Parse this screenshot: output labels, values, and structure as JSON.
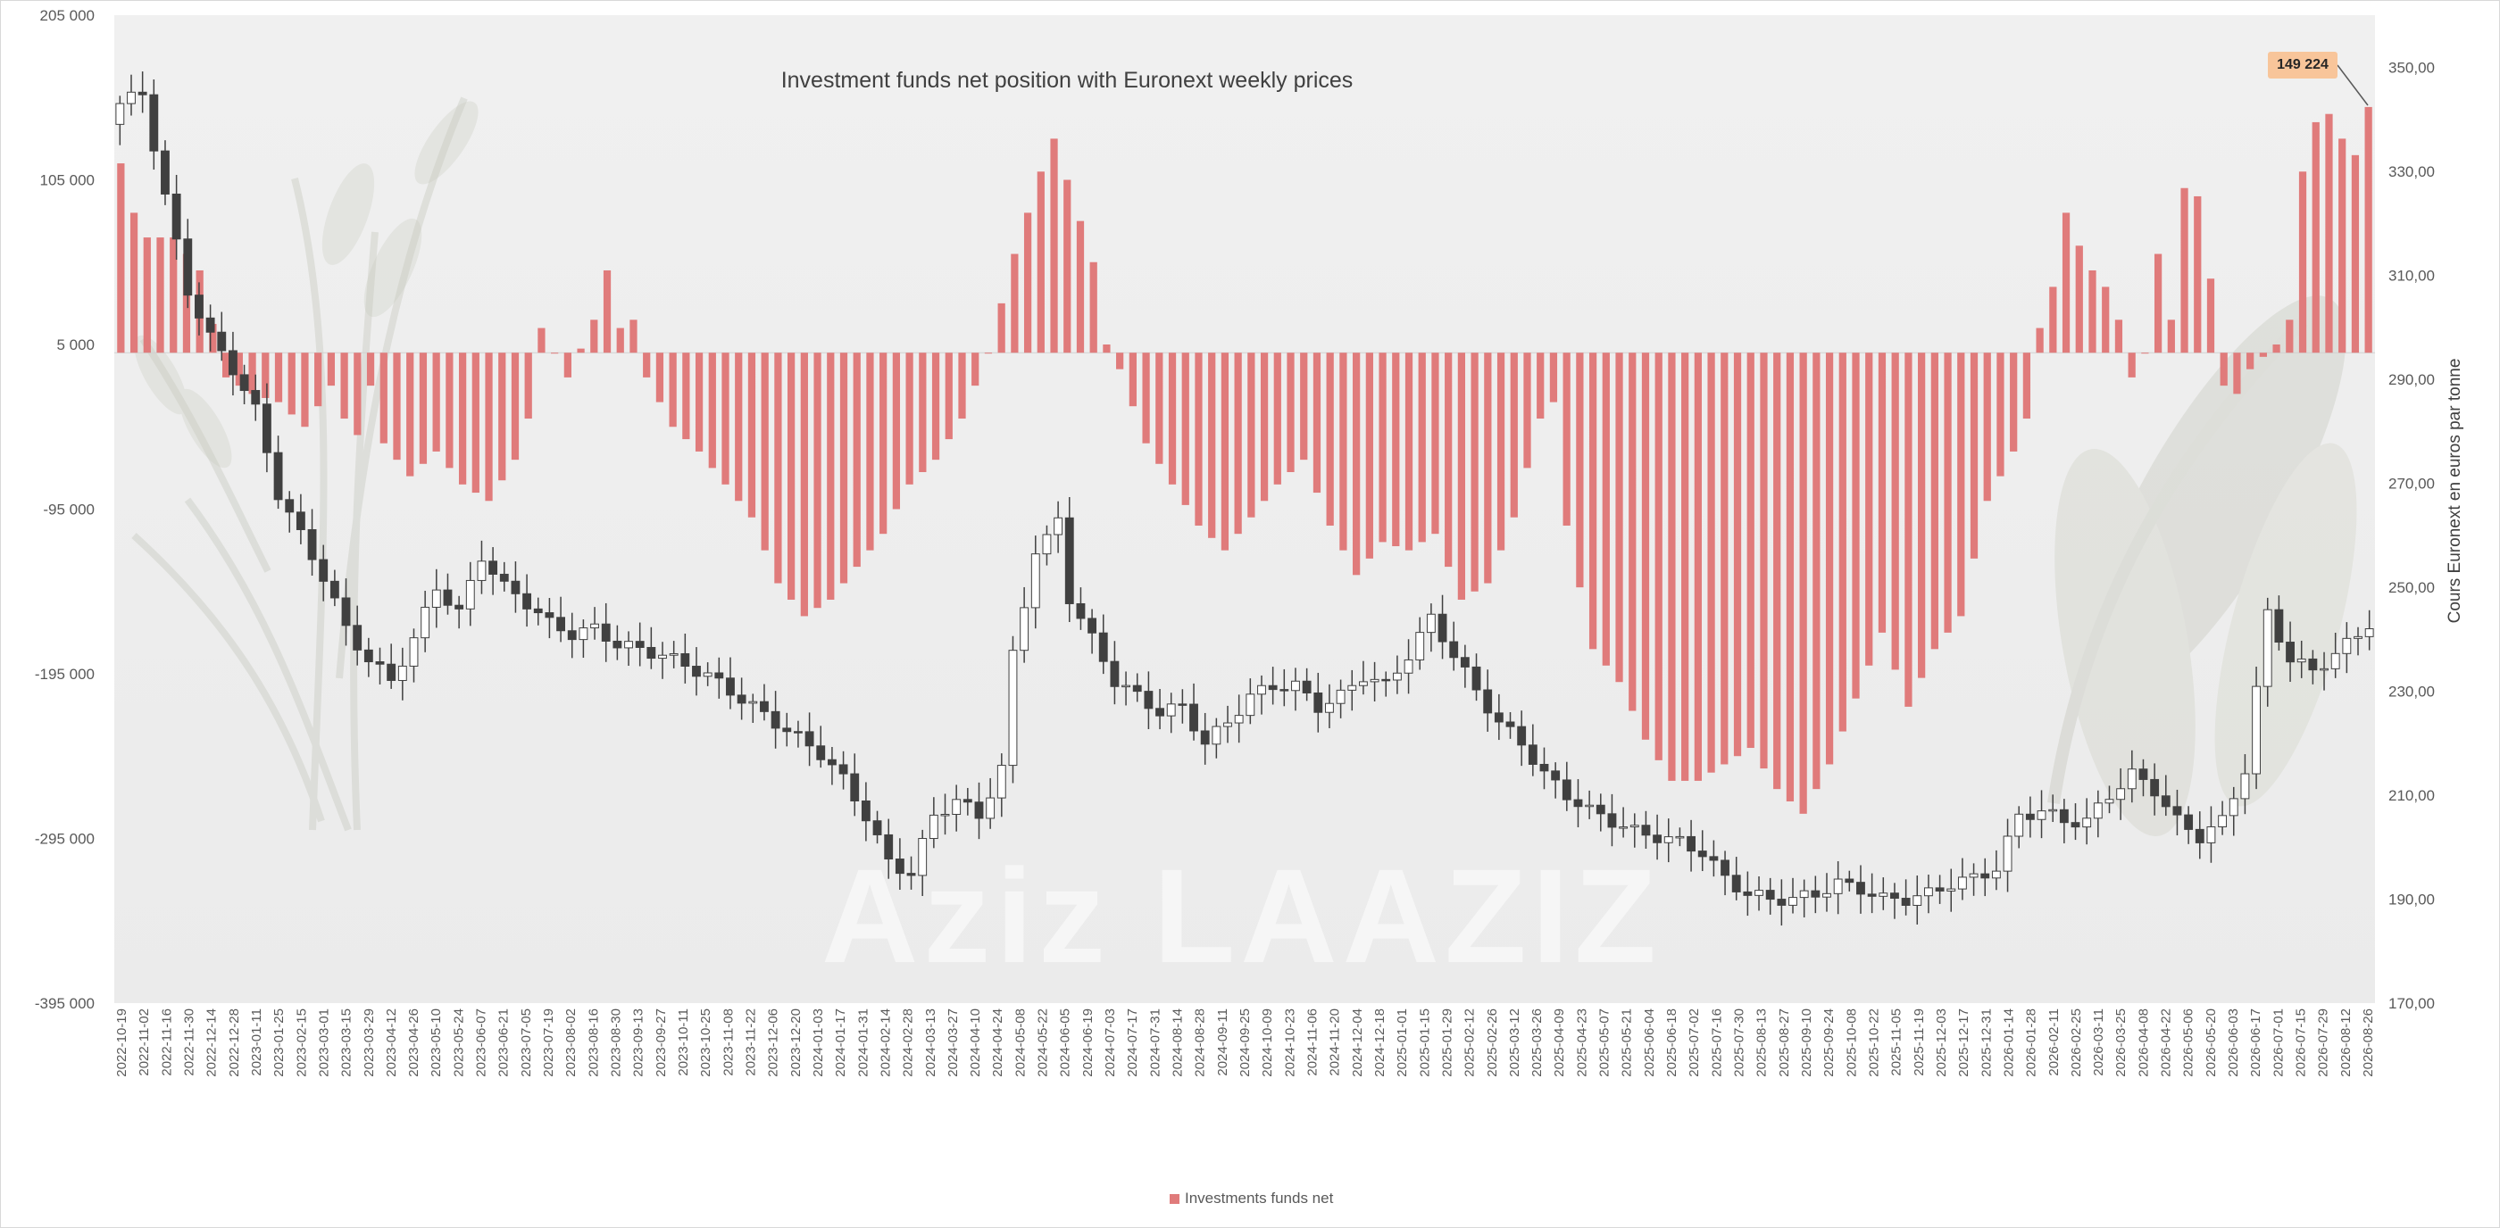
{
  "chart_data": {
    "type": "bar+candlestick",
    "title": "Investment funds net position with Euronext weekly prices",
    "watermark": "Aziz LAAZIZ",
    "legend": {
      "label": "Investments funds net",
      "placement": "bottom-center"
    },
    "y_left": {
      "range": [
        -395000,
        205000
      ],
      "ticks": [
        "205 000",
        "105 000",
        "5 000",
        "-95 000",
        "-195 000",
        "-295 000",
        "-395 000"
      ]
    },
    "y_right": {
      "label": "Cours Euronext en euros par tonne",
      "range": [
        170,
        360
      ],
      "ticks": [
        "350,00",
        "330,00",
        "310,00",
        "290,00",
        "270,00",
        "250,00",
        "230,00",
        "210,00",
        "190,00",
        "170,00"
      ]
    },
    "callout": {
      "text": "149 224",
      "fill": "#f8c59a"
    },
    "colors": {
      "bar": "#e07b7b",
      "bullish_body": "#ffffff",
      "bearish_body": "#404040",
      "wick": "#404040",
      "plot_bg": "#eeeeee"
    },
    "x_labels": [
      "2022-10-19",
      "2022-11-02",
      "2022-11-16",
      "2022-11-30",
      "2022-12-14",
      "2022-12-28",
      "2023-01-11",
      "2023-01-25",
      "2023-02-15",
      "2023-03-01",
      "2023-03-15",
      "2023-03-29",
      "2023-04-12",
      "2023-04-26",
      "2023-05-10",
      "2023-05-24",
      "2023-06-07",
      "2023-06-21",
      "2023-07-05",
      "2023-07-19",
      "2023-08-02",
      "2023-08-16",
      "2023-08-30",
      "2023-09-13",
      "2023-09-27",
      "2023-10-11",
      "2023-10-25",
      "2023-11-08",
      "2023-11-22",
      "2023-12-06",
      "2023-12-20",
      "2024-01-03",
      "2024-01-17",
      "2024-01-31",
      "2024-02-14",
      "2024-02-28",
      "2024-03-13",
      "2024-03-27",
      "2024-04-10",
      "2024-04-24",
      "2024-05-08",
      "2024-05-22",
      "2024-06-05",
      "2024-06-19",
      "2024-07-03",
      "2024-07-17",
      "2024-07-31",
      "2024-08-14",
      "2024-08-28",
      "2024-09-11",
      "2024-09-25",
      "2024-10-09",
      "2024-10-23",
      "2024-11-06",
      "2024-11-20",
      "2024-12-04",
      "2024-12-18",
      "2025-01-01",
      "2025-01-15",
      "2025-01-29",
      "2025-02-12",
      "2025-02-26",
      "2025-03-12",
      "2025-03-26",
      "2025-04-09",
      "2025-04-23",
      "2025-05-07",
      "2025-05-21",
      "2025-06-04",
      "2025-06-18",
      "2025-07-02",
      "2025-07-16",
      "2025-07-30",
      "2025-08-13",
      "2025-08-27",
      "2025-09-10",
      "2025-09-24",
      "2025-10-08",
      "2025-10-22",
      "2025-11-05",
      "2025-11-19",
      "2025-12-03",
      "2025-12-17",
      "2025-12-31",
      "2026-01-14",
      "2026-01-28",
      "2026-02-11",
      "2026-02-25",
      "2026-03-11",
      "2026-03-25",
      "2026-04-08",
      "2026-04-22",
      "2026-05-06",
      "2026-05-20",
      "2026-06-03",
      "2026-06-17",
      "2026-07-01",
      "2026-07-15",
      "2026-07-29",
      "2026-08-12",
      "2026-08-26"
    ],
    "net_position_anchors": [
      [
        0,
        115000
      ],
      [
        1,
        85000
      ],
      [
        2,
        70000
      ],
      [
        4,
        70000
      ],
      [
        6,
        50000
      ],
      [
        8,
        -15000
      ],
      [
        10,
        -25000
      ],
      [
        12,
        -30000
      ],
      [
        14,
        -45000
      ],
      [
        16,
        -20000
      ],
      [
        17,
        -40000
      ],
      [
        18,
        -50000
      ],
      [
        19,
        -20000
      ],
      [
        20,
        -55000
      ],
      [
        22,
        -75000
      ],
      [
        24,
        -60000
      ],
      [
        26,
        -80000
      ],
      [
        28,
        -90000
      ],
      [
        30,
        -65000
      ],
      [
        31,
        -40000
      ],
      [
        32,
        15000
      ],
      [
        34,
        -15000
      ],
      [
        36,
        20000
      ],
      [
        37,
        50000
      ],
      [
        38,
        15000
      ],
      [
        39,
        20000
      ],
      [
        40,
        -15000
      ],
      [
        42,
        -45000
      ],
      [
        44,
        -60000
      ],
      [
        46,
        -80000
      ],
      [
        48,
        -100000
      ],
      [
        50,
        -140000
      ],
      [
        52,
        -160000
      ],
      [
        54,
        -150000
      ],
      [
        56,
        -130000
      ],
      [
        58,
        -110000
      ],
      [
        60,
        -80000
      ],
      [
        62,
        -65000
      ],
      [
        64,
        -40000
      ],
      [
        66,
        0
      ],
      [
        68,
        60000
      ],
      [
        70,
        110000
      ],
      [
        71,
        130000
      ],
      [
        72,
        105000
      ],
      [
        74,
        55000
      ],
      [
        75,
        5000
      ],
      [
        76,
        -10000
      ],
      [
        78,
        -55000
      ],
      [
        80,
        -80000
      ],
      [
        82,
        -105000
      ],
      [
        84,
        -120000
      ],
      [
        86,
        -100000
      ],
      [
        88,
        -80000
      ],
      [
        90,
        -65000
      ],
      [
        92,
        -105000
      ],
      [
        94,
        -135000
      ],
      [
        96,
        -115000
      ],
      [
        98,
        -120000
      ],
      [
        100,
        -110000
      ],
      [
        102,
        -150000
      ],
      [
        104,
        -140000
      ],
      [
        106,
        -100000
      ],
      [
        108,
        -40000
      ],
      [
        109,
        -30000
      ],
      [
        110,
        -105000
      ],
      [
        112,
        -180000
      ],
      [
        114,
        -200000
      ],
      [
        116,
        -235000
      ],
      [
        118,
        -260000
      ],
      [
        120,
        -260000
      ],
      [
        122,
        -250000
      ],
      [
        124,
        -240000
      ],
      [
        126,
        -265000
      ],
      [
        128,
        -280000
      ],
      [
        130,
        -250000
      ],
      [
        132,
        -210000
      ],
      [
        134,
        -170000
      ],
      [
        136,
        -215000
      ],
      [
        138,
        -180000
      ],
      [
        140,
        -160000
      ],
      [
        142,
        -90000
      ],
      [
        144,
        -60000
      ],
      [
        145,
        -40000
      ],
      [
        146,
        15000
      ],
      [
        147,
        40000
      ],
      [
        148,
        85000
      ],
      [
        149,
        65000
      ],
      [
        150,
        50000
      ],
      [
        151,
        40000
      ],
      [
        152,
        20000
      ],
      [
        153,
        -15000
      ],
      [
        154,
        0
      ],
      [
        155,
        60000
      ],
      [
        156,
        20000
      ],
      [
        157,
        100000
      ],
      [
        158,
        95000
      ],
      [
        159,
        45000
      ],
      [
        160,
        -20000
      ],
      [
        161,
        -25000
      ],
      [
        162,
        -10000
      ],
      [
        164,
        5000
      ],
      [
        165,
        20000
      ],
      [
        166,
        110000
      ],
      [
        167,
        140000
      ],
      [
        168,
        145000
      ],
      [
        169,
        130000
      ],
      [
        170,
        120000
      ],
      [
        171,
        149224
      ]
    ],
    "price_anchors": [
      [
        0,
        343
      ],
      [
        2,
        345
      ],
      [
        4,
        325
      ],
      [
        6,
        307
      ],
      [
        8,
        298
      ],
      [
        10,
        292
      ],
      [
        12,
        284
      ],
      [
        14,
        268
      ],
      [
        16,
        260
      ],
      [
        18,
        252
      ],
      [
        20,
        242
      ],
      [
        22,
        236
      ],
      [
        24,
        232
      ],
      [
        26,
        240
      ],
      [
        28,
        250
      ],
      [
        30,
        245
      ],
      [
        32,
        256
      ],
      [
        34,
        250
      ],
      [
        36,
        247
      ],
      [
        38,
        243
      ],
      [
        40,
        241
      ],
      [
        42,
        242
      ],
      [
        44,
        239
      ],
      [
        46,
        238
      ],
      [
        48,
        237
      ],
      [
        50,
        235
      ],
      [
        52,
        233
      ],
      [
        54,
        230
      ],
      [
        56,
        227
      ],
      [
        58,
        224
      ],
      [
        60,
        221
      ],
      [
        62,
        218
      ],
      [
        64,
        213
      ],
      [
        66,
        206
      ],
      [
        68,
        197
      ],
      [
        70,
        195
      ],
      [
        72,
        206
      ],
      [
        74,
        209
      ],
      [
        76,
        206
      ],
      [
        78,
        215
      ],
      [
        79,
        237
      ],
      [
        81,
        257
      ],
      [
        82,
        259
      ],
      [
        83,
        263
      ],
      [
        84,
        248
      ],
      [
        86,
        240
      ],
      [
        88,
        232
      ],
      [
        90,
        229
      ],
      [
        92,
        226
      ],
      [
        94,
        227
      ],
      [
        96,
        220
      ],
      [
        98,
        224
      ],
      [
        100,
        229
      ],
      [
        102,
        231
      ],
      [
        104,
        231
      ],
      [
        106,
        227
      ],
      [
        108,
        229
      ],
      [
        110,
        233
      ],
      [
        112,
        231
      ],
      [
        114,
        237
      ],
      [
        116,
        244
      ],
      [
        118,
        237
      ],
      [
        120,
        230
      ],
      [
        122,
        224
      ],
      [
        124,
        220
      ],
      [
        126,
        214
      ],
      [
        128,
        210
      ],
      [
        130,
        207
      ],
      [
        132,
        205
      ],
      [
        134,
        203
      ],
      [
        136,
        202
      ],
      [
        138,
        201
      ],
      [
        140,
        199
      ],
      [
        142,
        194
      ],
      [
        144,
        191
      ],
      [
        146,
        190
      ],
      [
        148,
        190
      ],
      [
        150,
        191
      ],
      [
        152,
        193
      ],
      [
        154,
        192
      ],
      [
        156,
        190
      ],
      [
        158,
        190
      ],
      [
        160,
        191
      ],
      [
        162,
        193
      ],
      [
        164,
        194
      ],
      [
        166,
        196
      ],
      [
        168,
        206
      ],
      [
        170,
        207
      ],
      [
        172,
        205
      ],
      [
        174,
        205
      ],
      [
        176,
        210
      ],
      [
        178,
        214
      ],
      [
        180,
        211
      ],
      [
        182,
        205
      ],
      [
        184,
        202
      ],
      [
        186,
        205
      ],
      [
        188,
        215
      ],
      [
        190,
        245
      ],
      [
        192,
        236
      ],
      [
        194,
        234
      ],
      [
        196,
        237
      ],
      [
        198,
        241
      ],
      [
        199,
        243
      ]
    ]
  }
}
